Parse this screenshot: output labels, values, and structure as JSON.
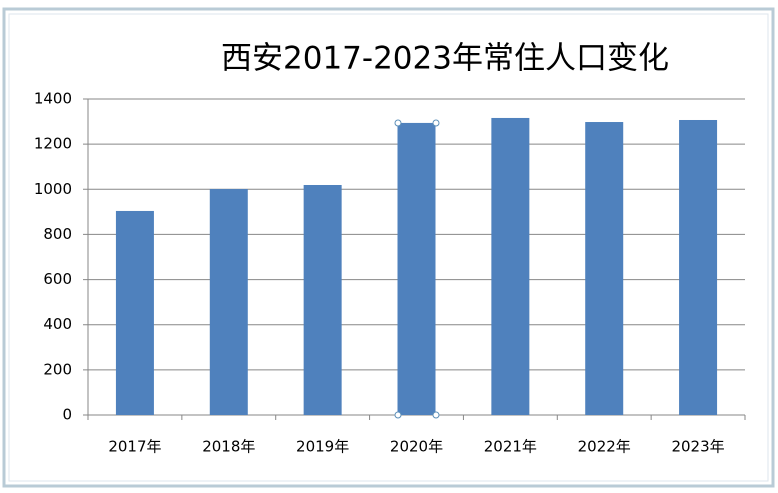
{
  "chart_data": {
    "type": "bar",
    "title": "西安2017-2023年常住人口变化",
    "categories": [
      "2017年",
      "2018年",
      "2019年",
      "2020年",
      "2021年",
      "2022年",
      "2023年"
    ],
    "values": [
      904,
      1001,
      1019,
      1294,
      1316,
      1298,
      1307
    ],
    "color": "#4f81bd",
    "ylim": [
      0,
      1400
    ],
    "yticks": [
      0,
      200,
      400,
      600,
      800,
      1000,
      1200,
      1400
    ],
    "grid": true
  }
}
